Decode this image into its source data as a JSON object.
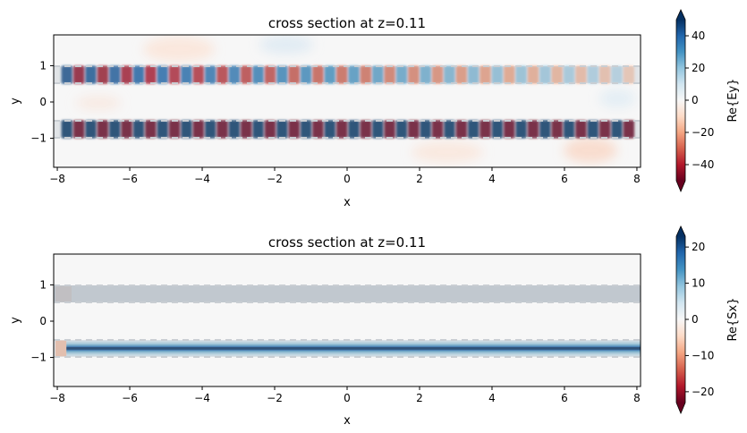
{
  "chart_data": [
    {
      "type": "heatmap",
      "title": "cross section at z=0.11",
      "xlabel": "x",
      "ylabel": "y",
      "xlim": [
        -8.1,
        8.1
      ],
      "ylim": [
        -1.8,
        1.85
      ],
      "x_ticks": [
        -8,
        -6,
        -4,
        -2,
        0,
        2,
        4,
        6,
        8
      ],
      "y_ticks": [
        -1,
        0,
        1
      ],
      "field": "Ey",
      "waveguides": [
        {
          "y_center": 0.75,
          "y_half_width": 0.22,
          "amplitude_start": 45,
          "amplitude_end": 12
        },
        {
          "y_center": -0.75,
          "y_half_width": 0.22,
          "amplitude_start": 50,
          "amplitude_end": 50
        }
      ],
      "period": 0.33,
      "colorbar": {
        "label": "Re{Ey}",
        "min": -50,
        "max": 50,
        "ticks": [
          -40,
          -20,
          0,
          20,
          40
        ],
        "colormap": "RdBu",
        "extend": "both"
      }
    },
    {
      "type": "heatmap",
      "title": "cross section at z=0.11",
      "xlabel": "x",
      "ylabel": "y",
      "xlim": [
        -8.1,
        8.1
      ],
      "ylim": [
        -1.8,
        1.85
      ],
      "x_ticks": [
        -8,
        -6,
        -4,
        -2,
        0,
        2,
        4,
        6,
        8
      ],
      "y_ticks": [
        -1,
        0,
        1
      ],
      "field": "Sx",
      "waveguides": [
        {
          "y_center": 0.75,
          "y_half_width": 0.22,
          "amplitude_start": 0,
          "amplitude_end": 0
        },
        {
          "y_center": -0.75,
          "y_half_width": 0.22,
          "amplitude_start": 23,
          "amplitude_end": 23
        }
      ],
      "colorbar": {
        "label": "Re{Sx}",
        "min": -23,
        "max": 23,
        "ticks": [
          -20,
          -10,
          0,
          10,
          20
        ],
        "colormap": "RdBu",
        "extend": "both"
      }
    }
  ]
}
